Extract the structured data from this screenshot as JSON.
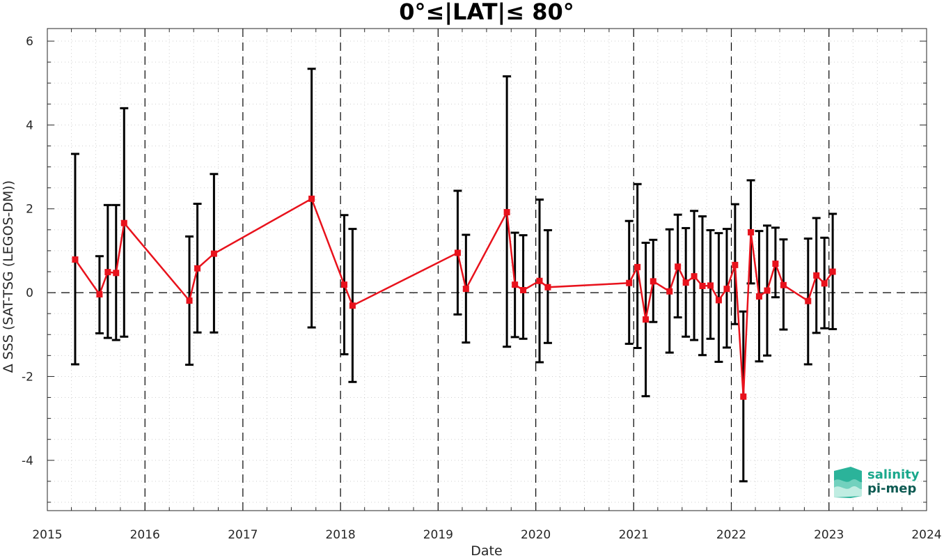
{
  "chart_data": {
    "type": "line",
    "title": "0°≤|LAT|≤ 80°",
    "xlabel": "Date",
    "ylabel": "Δ SSS (SAT-TSG (LEGOS-DM))",
    "xlim": [
      "2015-01-01",
      "2024-01-01"
    ],
    "ylim": [
      -5.2,
      6.3
    ],
    "x_ticks": [
      "2015",
      "2016",
      "2017",
      "2018",
      "2019",
      "2020",
      "2021",
      "2022",
      "2023",
      "2024"
    ],
    "y_ticks": [
      -4,
      -2,
      0,
      2,
      4,
      6
    ],
    "grid": "dotted minor",
    "reference_line": 0,
    "series": [
      {
        "color": "#e8121c",
        "marker": "square",
        "errorbar_color": "#000000",
        "x": [
          "2015-04-15",
          "2015-07-15",
          "2015-08-15",
          "2015-09-15",
          "2015-10-15",
          "2016-06-15",
          "2016-07-15",
          "2016-09-15",
          "2017-09-15",
          "2018-01-15",
          "2018-02-15",
          "2019-03-15",
          "2019-04-15",
          "2019-09-15",
          "2019-10-15",
          "2019-11-15",
          "2020-01-15",
          "2020-02-15",
          "2020-12-15",
          "2021-01-15",
          "2021-02-15",
          "2021-03-15",
          "2021-05-15",
          "2021-06-15",
          "2021-07-15",
          "2021-08-15",
          "2021-09-15",
          "2021-10-15",
          "2021-11-15",
          "2021-12-15",
          "2022-01-15",
          "2022-02-15",
          "2022-03-15",
          "2022-04-15",
          "2022-05-15",
          "2022-06-15",
          "2022-07-15",
          "2022-10-15",
          "2022-11-15",
          "2022-12-15",
          "2023-01-15"
        ],
        "y": [
          0.79,
          -0.04,
          0.49,
          0.47,
          1.66,
          -0.19,
          0.58,
          0.93,
          2.24,
          0.19,
          -0.31,
          0.95,
          0.09,
          1.92,
          0.19,
          0.06,
          0.28,
          0.13,
          0.23,
          0.61,
          -0.64,
          0.27,
          0.03,
          0.62,
          0.24,
          0.39,
          0.16,
          0.17,
          -0.18,
          0.09,
          0.66,
          -2.48,
          1.44,
          -0.09,
          0.05,
          0.69,
          0.18,
          -0.2,
          0.41,
          0.22,
          0.5
        ],
        "y_upper": [
          3.31,
          0.87,
          2.09,
          2.09,
          4.4,
          1.34,
          2.12,
          2.83,
          5.34,
          1.85,
          1.52,
          2.43,
          1.38,
          5.16,
          1.43,
          1.37,
          2.22,
          1.49,
          1.71,
          2.59,
          1.19,
          1.26,
          1.51,
          1.86,
          1.54,
          1.95,
          1.82,
          1.49,
          1.42,
          1.52,
          2.11,
          -0.45,
          2.68,
          1.47,
          1.6,
          1.55,
          1.27,
          1.29,
          1.78,
          1.31,
          1.88
        ],
        "y_lower": [
          -1.71,
          -0.97,
          -1.08,
          -1.13,
          -1.05,
          -1.72,
          -0.95,
          -0.95,
          -0.83,
          -1.47,
          -2.13,
          -0.52,
          -1.19,
          -1.29,
          -1.06,
          -1.1,
          -1.66,
          -1.2,
          -1.22,
          -1.32,
          -2.47,
          -0.7,
          -1.43,
          -0.59,
          -1.05,
          -1.13,
          -1.49,
          -1.1,
          -1.65,
          -1.31,
          -0.75,
          -4.5,
          0.22,
          -1.64,
          -1.5,
          -0.11,
          -0.88,
          -1.71,
          -0.96,
          -0.85,
          -0.87
        ]
      }
    ]
  },
  "logo": {
    "line1": "salinity",
    "line2": "pi-mep",
    "color1": "#1aa88c",
    "color2": "#0d5a52"
  }
}
